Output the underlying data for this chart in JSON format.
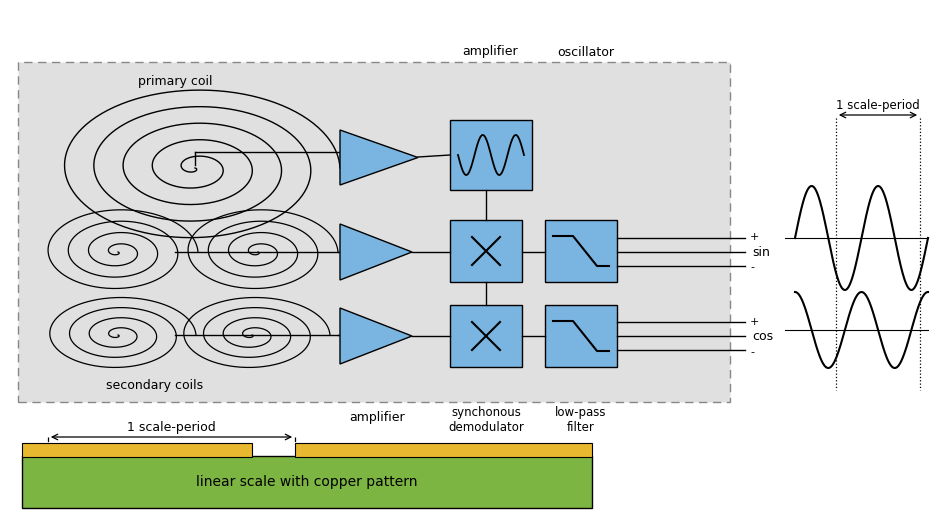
{
  "bg_color": "#ffffff",
  "box_color": "#e0e0e0",
  "block_color": "#7ab4e0",
  "green_color": "#7db543",
  "gold_color": "#e8b830",
  "labels": {
    "primary_coil": "primary coil",
    "secondary_coils": "secondary coils",
    "amplifier_top": "amplifier",
    "oscillator": "oscillator",
    "amplifier_bot": "amplifier",
    "synchonous_demod": "synchonous\ndemodulator",
    "low_pass": "low-pass\nfilter",
    "sin": "sin",
    "cos": "cos",
    "scale_period_top": "1 scale-period",
    "scale_period_bot": "1 scale-period",
    "linear_scale": "linear scale with copper pattern",
    "plus": "+",
    "minus": "-"
  },
  "figsize": [
    9.36,
    5.3
  ],
  "dpi": 100
}
